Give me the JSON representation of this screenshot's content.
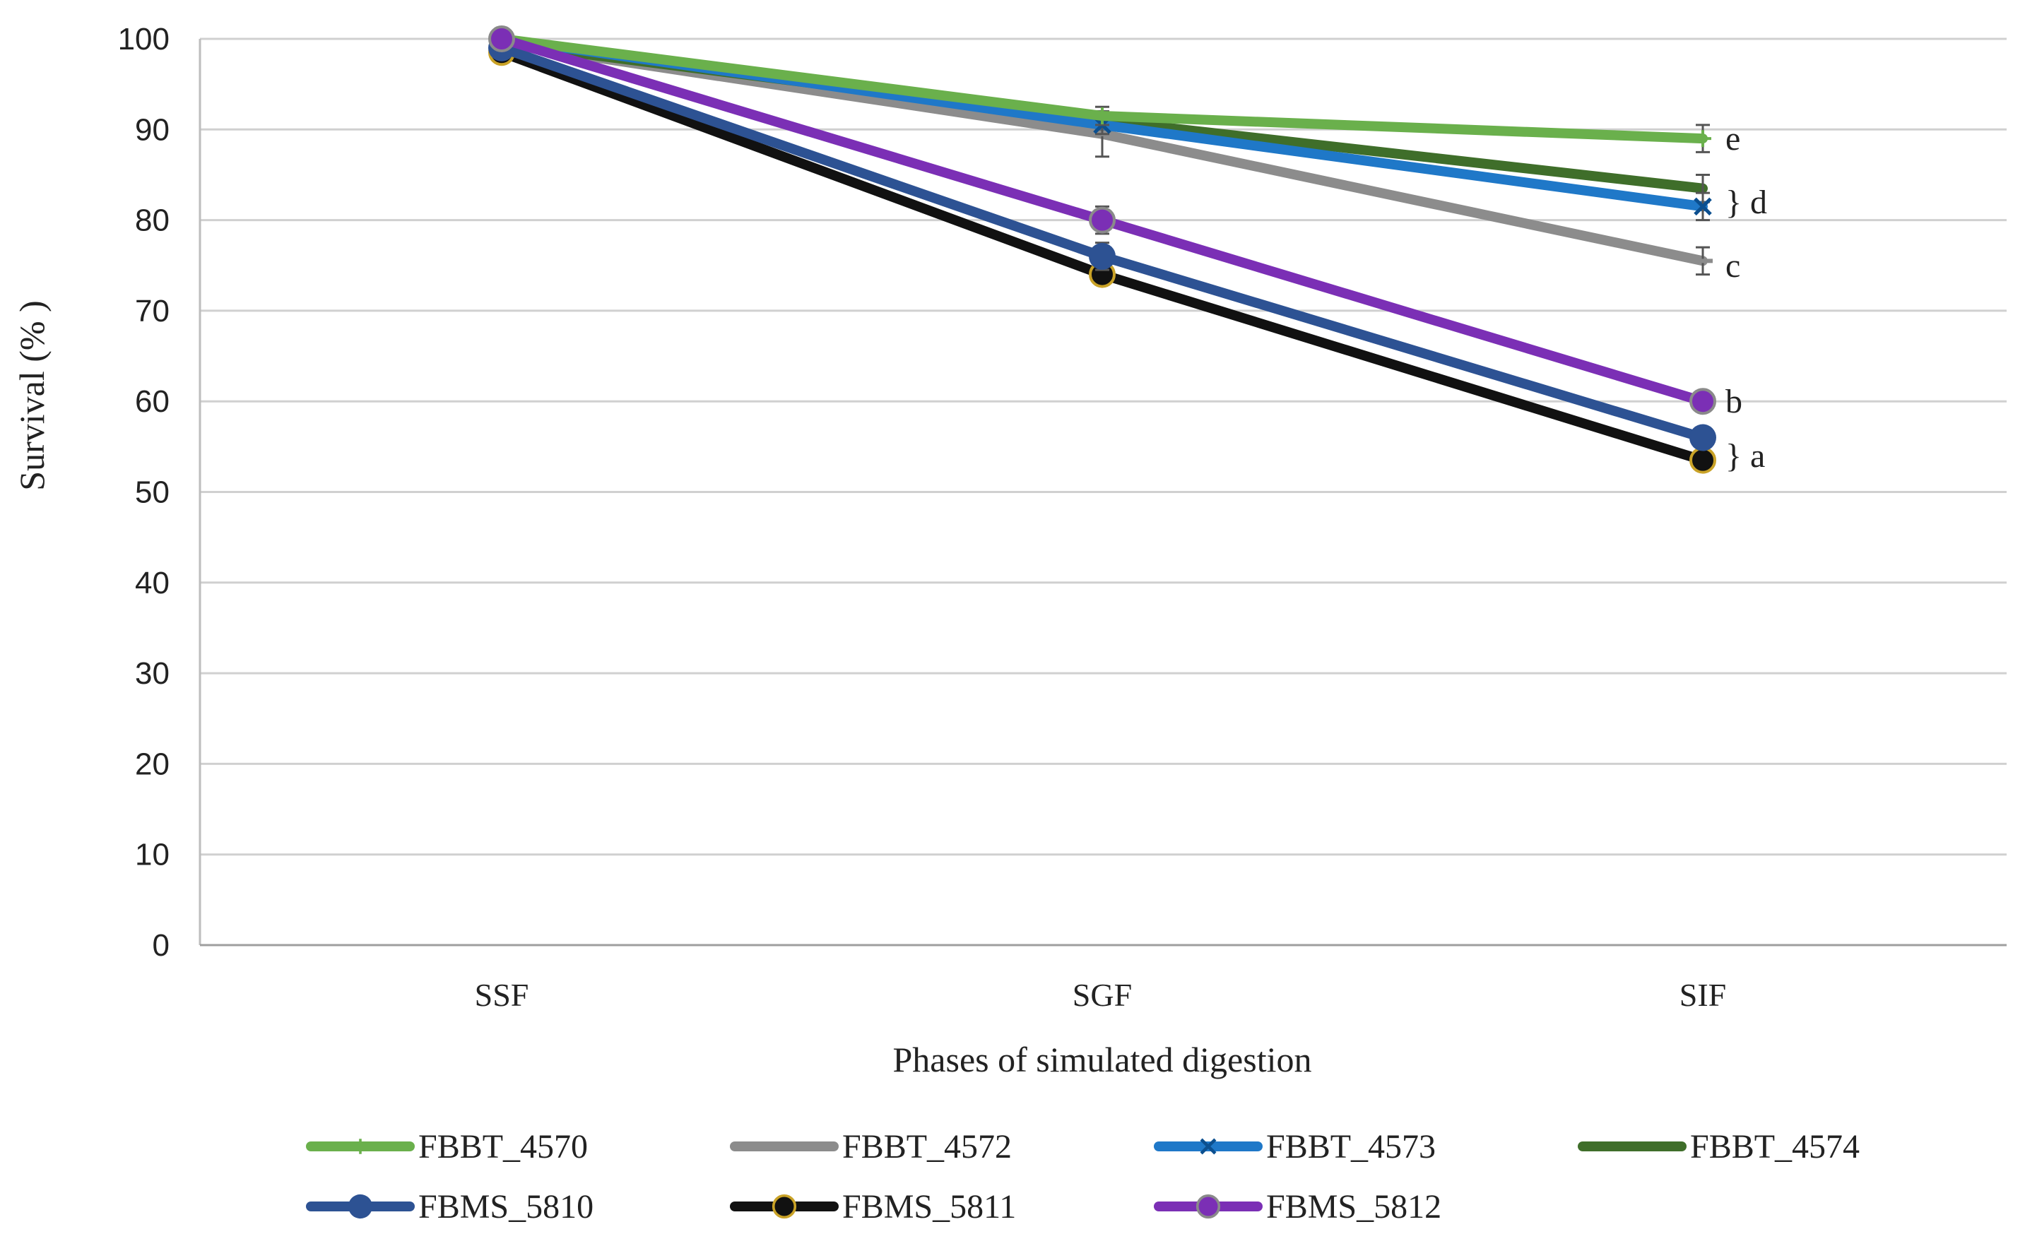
{
  "chart_data": {
    "type": "line",
    "title": "",
    "xlabel": "Phases of simulated digestion",
    "ylabel": "Survival (% )",
    "categories": [
      "SSF",
      "SGF",
      "SIF"
    ],
    "ylim": [
      0,
      100
    ],
    "yticks": [
      0,
      10,
      20,
      30,
      40,
      50,
      60,
      70,
      80,
      90,
      100
    ],
    "grid": true,
    "legend_position": "bottom",
    "series": [
      {
        "name": "FBBT_4570",
        "values": [
          100,
          91.5,
          89
        ],
        "errors": [
          0,
          1,
          1.5
        ],
        "color": "#6ab04c",
        "marker": "plus"
      },
      {
        "name": "FBBT_4572",
        "values": [
          99.5,
          89.5,
          75.5
        ],
        "errors": [
          0,
          2.5,
          1.5
        ],
        "color": "#8c8c8c",
        "marker": "dash"
      },
      {
        "name": "FBBT_4573",
        "values": [
          100,
          90.5,
          81.5
        ],
        "errors": [
          0,
          1,
          1.5
        ],
        "color": "#1f78c8",
        "marker": "cross"
      },
      {
        "name": "FBBT_4574",
        "values": [
          99.5,
          91,
          83.5
        ],
        "errors": [
          0,
          1,
          1.5
        ],
        "color": "#3f6e2a",
        "marker": "none"
      },
      {
        "name": "FBMS_5810",
        "values": [
          99,
          76,
          56
        ],
        "errors": [
          0,
          1.5,
          1
        ],
        "color": "#2d5293",
        "marker": "circle"
      },
      {
        "name": "FBMS_5811",
        "values": [
          98.5,
          74,
          53.5
        ],
        "errors": [
          0,
          1,
          1
        ],
        "color": "#111111",
        "marker": "circle-gold"
      },
      {
        "name": "FBMS_5812",
        "values": [
          100,
          80,
          60
        ],
        "errors": [
          0,
          1.5,
          1
        ],
        "color": "#7b2fb5",
        "marker": "circle-gray"
      }
    ],
    "annotations": [
      {
        "text": "e",
        "category": "SIF",
        "y": 89
      },
      {
        "text": "} d",
        "category": "SIF",
        "y": 82
      },
      {
        "text": "c",
        "category": "SIF",
        "y": 75
      },
      {
        "text": "b",
        "category": "SIF",
        "y": 60
      },
      {
        "text": "} a",
        "category": "SIF",
        "y": 54
      }
    ]
  }
}
